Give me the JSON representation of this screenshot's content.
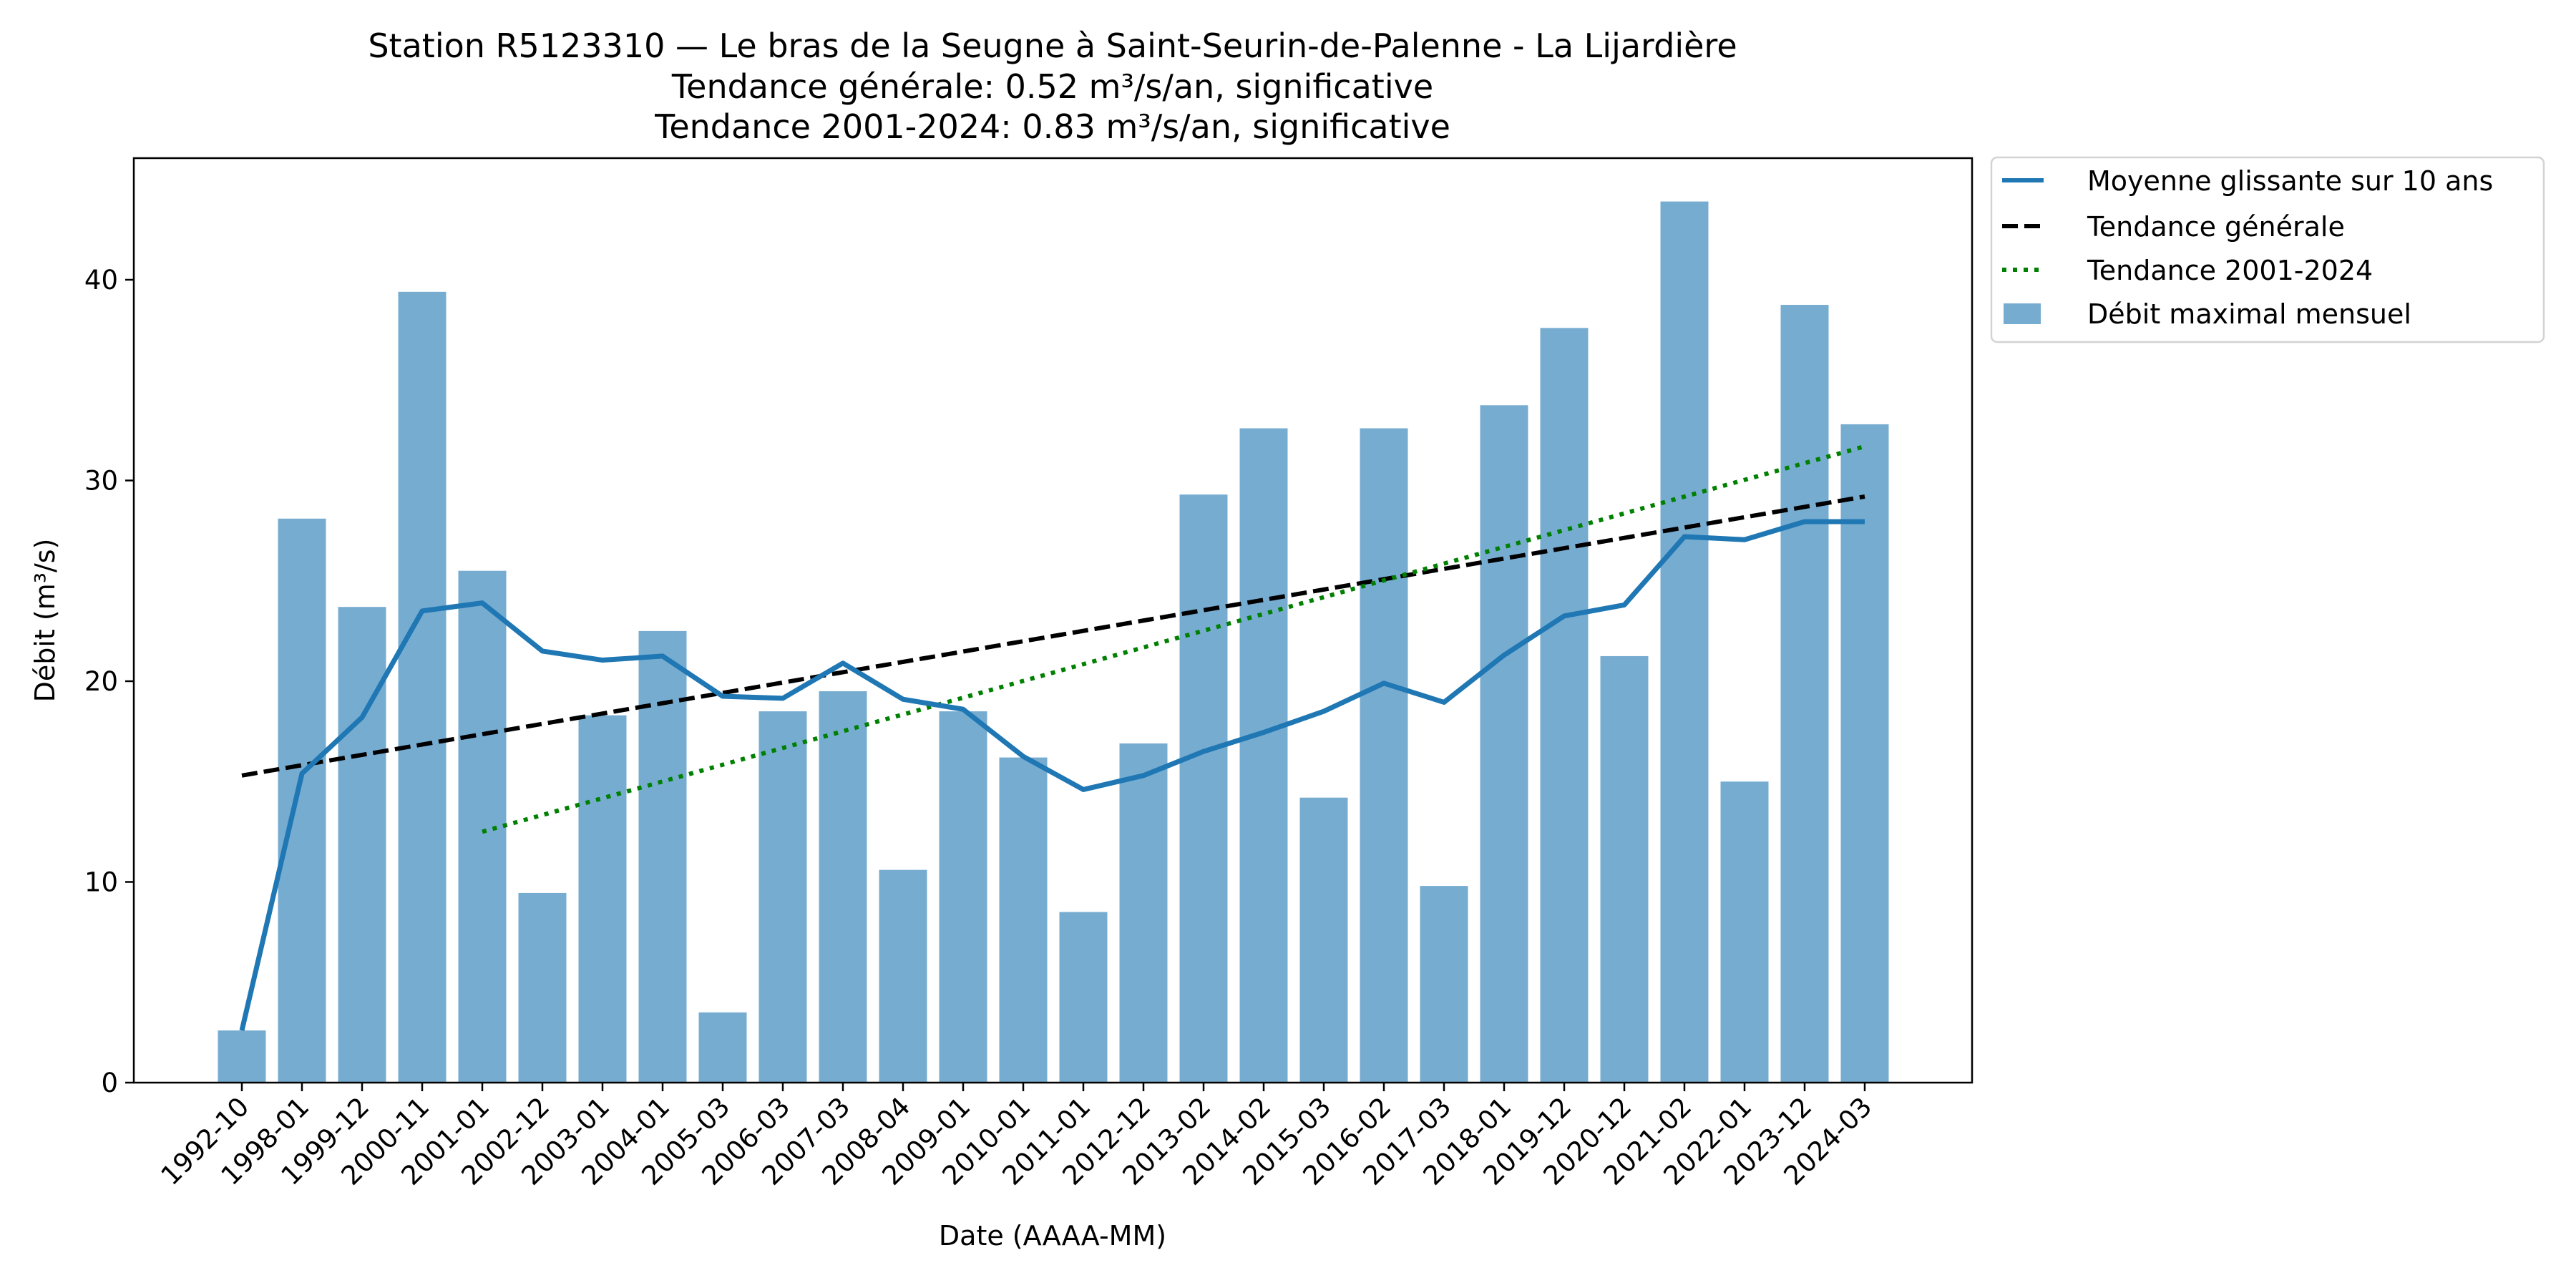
{
  "chart_data": {
    "type": "bar",
    "title": [
      "Station R5123310 — Le bras de la Seugne à Saint-Seurin-de-Palenne - La Lijardière",
      "Tendance générale: 0.52 m³/s/an, significative",
      "Tendance 2001-2024: 0.83 m³/s/an, significative"
    ],
    "xlabel": "Date (AAAA-MM)",
    "ylabel": "Débit (m³/s)",
    "ylim": [
      0,
      46.06
    ],
    "yticks": [
      0,
      10,
      20,
      30,
      40
    ],
    "grid": false,
    "legend_position": "outside-top-right",
    "categories": [
      "1992-10",
      "1998-01",
      "1999-12",
      "2000-11",
      "2001-01",
      "2002-12",
      "2003-01",
      "2004-01",
      "2005-03",
      "2006-03",
      "2007-03",
      "2008-04",
      "2009-01",
      "2010-01",
      "2011-01",
      "2012-12",
      "2013-02",
      "2014-02",
      "2015-03",
      "2016-02",
      "2017-03",
      "2018-01",
      "2019-12",
      "2020-12",
      "2021-02",
      "2022-01",
      "2023-12",
      "2024-03"
    ],
    "series": [
      {
        "name": "Débit maximal mensuel",
        "kind": "bar",
        "color": "#77acd1",
        "values": [
          2.6,
          28.1,
          23.7,
          39.4,
          25.5,
          9.45,
          18.3,
          22.5,
          3.5,
          18.5,
          19.5,
          10.6,
          18.5,
          16.2,
          8.5,
          16.9,
          29.3,
          32.6,
          14.2,
          32.6,
          9.8,
          33.75,
          37.6,
          21.25,
          43.9,
          15.0,
          38.75,
          32.8
        ]
      },
      {
        "name": "Moyenne glissante sur 10 ans",
        "kind": "line",
        "color": "#1f77b4",
        "values": [
          2.6,
          15.4,
          18.2,
          23.5,
          23.9,
          21.5,
          21.05,
          21.25,
          19.25,
          19.15,
          20.9,
          19.1,
          18.6,
          16.25,
          14.6,
          15.3,
          16.5,
          17.45,
          18.5,
          19.9,
          18.95,
          21.3,
          23.25,
          23.8,
          27.2,
          27.05,
          27.95,
          27.95
        ]
      },
      {
        "name": "Tendance générale",
        "kind": "trend-dashed",
        "color": "#000000",
        "start": {
          "category": "1992-10",
          "value": 15.3
        },
        "end": {
          "category": "2024-03",
          "value": 29.2
        }
      },
      {
        "name": "Tendance 2001-2024",
        "kind": "trend-dotted",
        "color": "#008000",
        "start": {
          "category": "2001-01",
          "value": 12.5
        },
        "end": {
          "category": "2024-03",
          "value": 31.7
        }
      }
    ],
    "legend": [
      "Moyenne glissante sur 10 ans",
      "Tendance générale",
      "Tendance 2001-2024",
      "Débit maximal mensuel"
    ]
  }
}
